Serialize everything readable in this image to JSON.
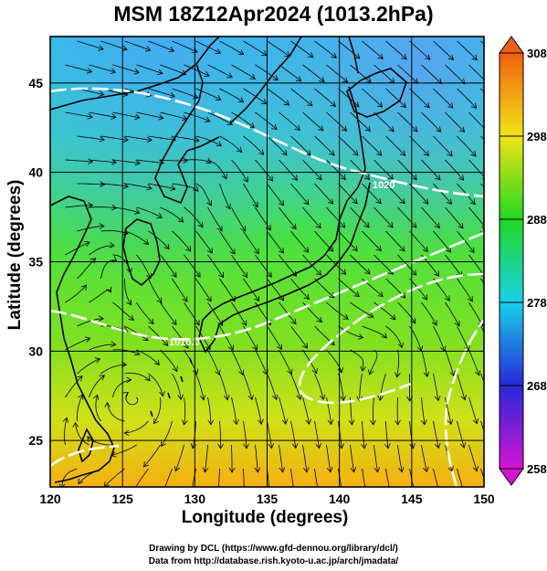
{
  "title": "MSM 18Z12Apr2024 (1013.2hPa)",
  "xlabel": "Longitude (degrees)",
  "ylabel": "Latitude  (degrees)",
  "credits": {
    "line1": "Drawing by DCL (https://www.gfd-dennou.org/library/dcl/)",
    "line2": "Data from http://database.rish.kyoto-u.ac.jp/arch/jmadata/"
  },
  "map": {
    "lon_range": [
      120,
      150
    ],
    "lat_range": [
      22.4,
      47.6
    ],
    "lon_ticks": [
      120,
      125,
      130,
      135,
      140,
      145,
      150
    ],
    "lat_ticks": [
      25,
      30,
      35,
      40,
      45
    ],
    "isobar_labels": [
      "1010.0",
      "1020"
    ]
  },
  "colorbar": {
    "min": 258,
    "max": 308,
    "ticks": [
      308,
      298,
      288,
      278,
      268,
      258
    ],
    "colors": [
      "#d414d4",
      "#2828d8",
      "#18d0ea",
      "#20d820",
      "#f0e414",
      "#f06010"
    ]
  }
}
